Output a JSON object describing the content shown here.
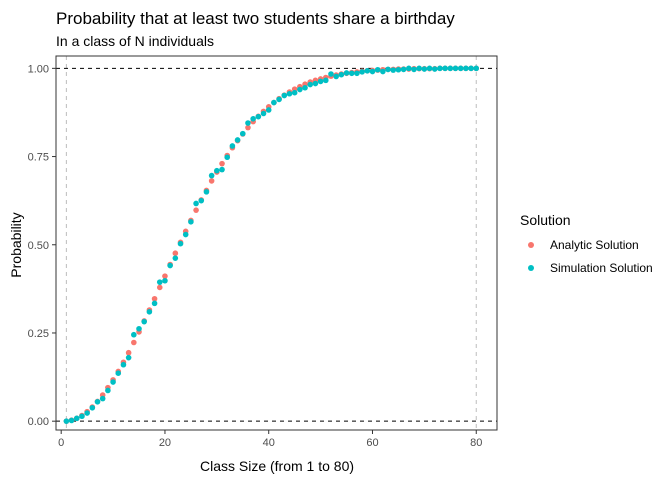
{
  "chart_data": {
    "type": "scatter",
    "title": "Probability that at least two students share a birthday",
    "subtitle": "In a class of N individuals",
    "xlabel": "Class Size (from 1 to 80)",
    "ylabel": "Probability",
    "xlim": [
      -1,
      84
    ],
    "ylim": [
      -0.025,
      1.035
    ],
    "x_ticks": [
      0,
      20,
      40,
      60,
      80
    ],
    "x_tick_labels": [
      "0",
      "20",
      "40",
      "60",
      "80"
    ],
    "y_ticks": [
      0,
      0.25,
      0.5,
      0.75,
      1
    ],
    "y_tick_labels": [
      "0.00",
      "0.25",
      "0.50",
      "0.75",
      "1.00"
    ],
    "grid": false,
    "reference_lines": {
      "horizontal_dashed_black": [
        0,
        1
      ],
      "vertical_dashed_grey": [
        1,
        80
      ]
    },
    "legend": {
      "title": "Solution",
      "placement": "right"
    },
    "x": [
      1,
      2,
      3,
      4,
      5,
      6,
      7,
      8,
      9,
      10,
      11,
      12,
      13,
      14,
      15,
      16,
      17,
      18,
      19,
      20,
      21,
      22,
      23,
      24,
      25,
      26,
      27,
      28,
      29,
      30,
      31,
      32,
      33,
      34,
      35,
      36,
      37,
      38,
      39,
      40,
      41,
      42,
      43,
      44,
      45,
      46,
      47,
      48,
      49,
      50,
      51,
      52,
      53,
      54,
      55,
      56,
      57,
      58,
      59,
      60,
      61,
      62,
      63,
      64,
      65,
      66,
      67,
      68,
      69,
      70,
      71,
      72,
      73,
      74,
      75,
      76,
      77,
      78,
      79,
      80
    ],
    "series": [
      {
        "name": "Analytic Solution",
        "color": "#F8766D",
        "values": [
          0,
          0.003,
          0.008,
          0.016,
          0.027,
          0.04,
          0.056,
          0.074,
          0.095,
          0.117,
          0.141,
          0.167,
          0.194,
          0.223,
          0.253,
          0.284,
          0.315,
          0.347,
          0.379,
          0.411,
          0.444,
          0.476,
          0.507,
          0.538,
          0.569,
          0.598,
          0.627,
          0.654,
          0.681,
          0.706,
          0.73,
          0.753,
          0.775,
          0.795,
          0.814,
          0.832,
          0.849,
          0.864,
          0.878,
          0.891,
          0.903,
          0.914,
          0.924,
          0.933,
          0.941,
          0.948,
          0.955,
          0.961,
          0.966,
          0.97,
          0.974,
          0.978,
          0.981,
          0.984,
          0.986,
          0.988,
          0.99,
          0.992,
          0.993,
          0.994,
          0.995,
          0.996,
          0.997,
          0.997,
          0.998,
          0.998,
          0.998,
          0.999,
          0.999,
          0.999,
          0.999,
          0.999,
          1.0,
          1.0,
          1.0,
          1.0,
          1.0,
          1.0,
          1.0,
          1.0
        ]
      },
      {
        "name": "Simulation Solution",
        "color": "#00BFC4",
        "values": [
          0,
          0.002,
          0.008,
          0.014,
          0.023,
          0.038,
          0.055,
          0.064,
          0.087,
          0.111,
          0.136,
          0.16,
          0.18,
          0.245,
          0.262,
          0.282,
          0.31,
          0.334,
          0.394,
          0.398,
          0.441,
          0.462,
          0.503,
          0.529,
          0.565,
          0.617,
          0.625,
          0.65,
          0.696,
          0.71,
          0.713,
          0.748,
          0.78,
          0.797,
          0.815,
          0.845,
          0.857,
          0.863,
          0.872,
          0.882,
          0.903,
          0.912,
          0.923,
          0.928,
          0.931,
          0.94,
          0.945,
          0.954,
          0.957,
          0.963,
          0.966,
          0.984,
          0.977,
          0.982,
          0.987,
          0.986,
          0.986,
          0.99,
          0.993,
          0.991,
          0.996,
          0.991,
          0.997,
          0.995,
          0.996,
          0.997,
          1.0,
          0.997,
          1.0,
          0.998,
          1.0,
          0.998,
          1.0,
          1.0,
          1.0,
          1.0,
          1.0,
          1.0,
          1.0,
          1.0
        ]
      }
    ]
  }
}
